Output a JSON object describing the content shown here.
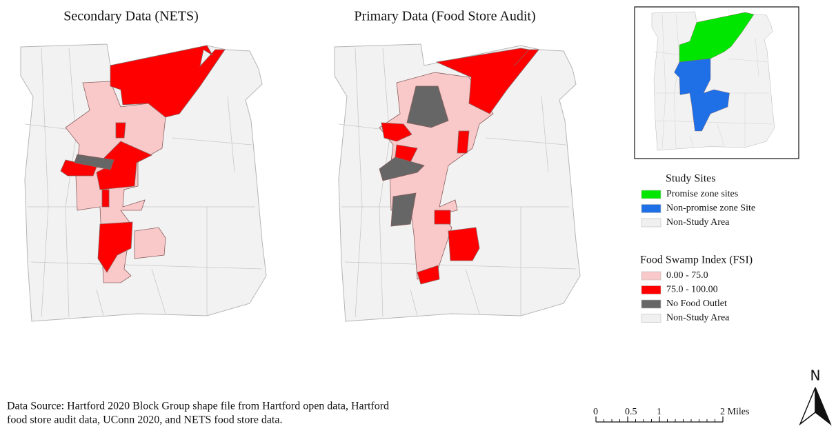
{
  "maps": [
    {
      "title": "Secondary Data (NETS)"
    },
    {
      "title": "Primary Data (Food Store Audit)"
    }
  ],
  "legends": [
    {
      "title": "Study Sites",
      "items": [
        {
          "label": "Promise zone sites",
          "color": "#00e600"
        },
        {
          "label": "Non-promise zone Site",
          "color": "#1f6fe6"
        },
        {
          "label": "Non-Study Area",
          "color": "#f0f0f0"
        }
      ]
    },
    {
      "title": "Food Swamp Index (FSI)",
      "items": [
        {
          "label": "0.00 - 75.0",
          "color": "#f9c8c8"
        },
        {
          "label": "75.0 - 100.00",
          "color": "#ff0000"
        },
        {
          "label": "No Food Outlet",
          "color": "#666666"
        },
        {
          "label": "Non-Study Area",
          "color": "#f0f0f0"
        }
      ]
    }
  ],
  "source": [
    "Data Source: Hartford 2020 Block Group shape file from Hartford open data,  Hartford",
    "food store audit data, UConn 2020, and NETS food store data."
  ],
  "scale_bar": {
    "ticks": [
      0,
      0.5,
      1,
      {
        "value": 2,
        "label": "2 Miles"
      }
    ]
  },
  "north": "N"
}
